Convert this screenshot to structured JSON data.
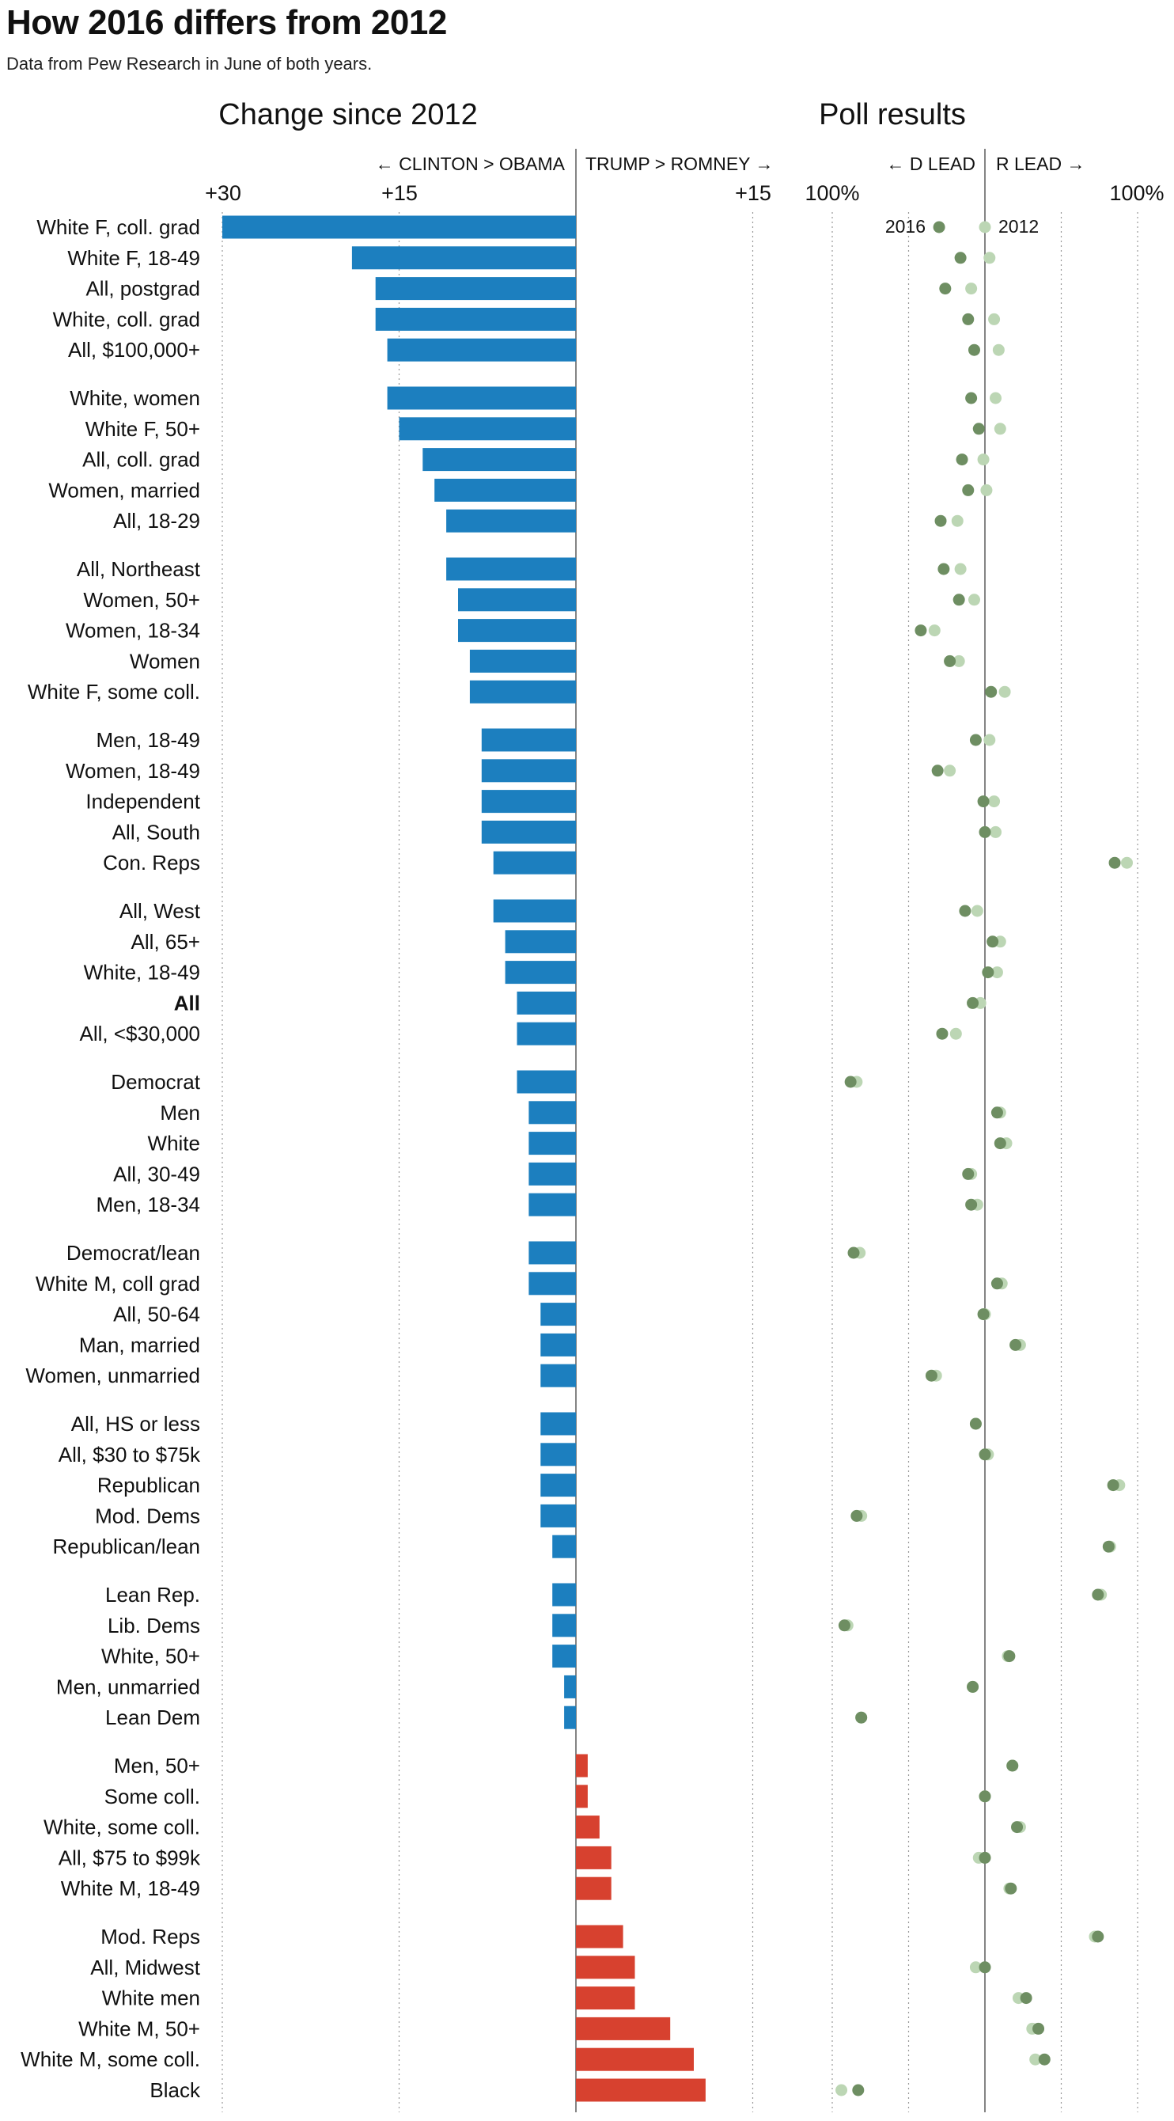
{
  "title": "How 2016 differs from 2012",
  "subtitle": "Data from Pew Research in June of both years.",
  "colors": {
    "clinton_gain": "#1c7fbf",
    "trump_gain": "#d7412f",
    "dot_2016": "#6e8e62",
    "dot_2012": "#bcd6b4",
    "axis": "#666666",
    "grid": "#999999"
  },
  "chart_data": [
    {
      "type": "bar",
      "title": "Change since 2012",
      "left_direction_label": "← CLINTON > OBAMA",
      "right_direction_label": "TRUMP > ROMNEY →",
      "xlim": [
        -30,
        15
      ],
      "x_ticks": [
        {
          "value": -30,
          "label": "+30"
        },
        {
          "value": -15,
          "label": "+15"
        },
        {
          "value": 15,
          "label": "+15"
        }
      ],
      "categories": [
        [
          "White F, coll. grad",
          "White F, 18-49",
          "All, postgrad",
          "White, coll. grad",
          "All, $100,000+"
        ],
        [
          "White, women",
          "White F, 50+",
          "All, coll. grad",
          "Women, married",
          "All, 18-29"
        ],
        [
          "All, Northeast",
          "Women, 50+",
          "Women, 18-34",
          "Women",
          "White F, some coll."
        ],
        [
          "Men, 18-49",
          "Women, 18-49",
          "Independent",
          "All, South",
          "Con. Reps"
        ],
        [
          "All, West",
          "All, 65+",
          "White, 18-49",
          "All",
          "All, <$30,000"
        ],
        [
          "Democrat",
          "Men",
          "White",
          "All, 30-49",
          "Men, 18-34"
        ],
        [
          "Democrat/lean",
          "White M, coll grad",
          "All, 50-64",
          "Man, married",
          "Women, unmarried"
        ],
        [
          "All, HS or less",
          "All, $30 to $75k",
          "Republican",
          "Mod. Dems",
          "Republican/lean"
        ],
        [
          "Lean Rep.",
          "Lib. Dems",
          "White, 50+",
          "Men, unmarried",
          "Lean Dem"
        ],
        [
          "Men, 50+",
          "Some coll.",
          "White, some coll.",
          "All, $75 to $99k",
          "White M, 18-49"
        ],
        [
          "Mod. Reps",
          "All, Midwest",
          "White men",
          "White M, 50+",
          "White M, some coll.",
          "Black"
        ]
      ],
      "bold_category": "All",
      "values": [
        [
          -30,
          -19,
          -17,
          -17,
          -16
        ],
        [
          -16,
          -15,
          -13,
          -12,
          -11
        ],
        [
          -11,
          -10,
          -10,
          -9,
          -9
        ],
        [
          -8,
          -8,
          -8,
          -8,
          -7
        ],
        [
          -7,
          -6,
          -6,
          -5,
          -5
        ],
        [
          -5,
          -4,
          -4,
          -4,
          -4
        ],
        [
          -4,
          -4,
          -3,
          -3,
          -3
        ],
        [
          -3,
          -3,
          -3,
          -3,
          -2
        ],
        [
          -2,
          -2,
          -2,
          -1,
          -1
        ],
        [
          1,
          1,
          2,
          3,
          3
        ],
        [
          4,
          5,
          5,
          8,
          10,
          11
        ]
      ]
    },
    {
      "type": "scatter",
      "title": "Poll results",
      "left_direction_label": "← D LEAD",
      "right_direction_label": "R LEAD →",
      "xlim": [
        -100,
        100
      ],
      "x_ticks": [
        {
          "value": -100,
          "label": "100%"
        },
        {
          "value": 100,
          "label": "100%"
        }
      ],
      "legend": {
        "2016": "2016",
        "2012": "2012"
      },
      "series": [
        {
          "name": "2016",
          "values": [
            [
              -30,
              -16,
              -26,
              -11,
              -7
            ],
            [
              -9,
              -4,
              -15,
              -11,
              -29
            ],
            [
              -27,
              -17,
              -42,
              -23,
              4
            ],
            [
              -6,
              -31,
              -1,
              0,
              85
            ],
            [
              -13,
              5,
              2,
              -8,
              -28
            ],
            [
              -88,
              8,
              10,
              -11,
              -9
            ],
            [
              -86,
              8,
              -1,
              20,
              -35
            ],
            [
              -6,
              0,
              84,
              -84,
              81
            ],
            [
              74,
              -92,
              16,
              -8,
              -81
            ],
            [
              18,
              0,
              21,
              0,
              17
            ],
            [
              74,
              0,
              27,
              35,
              39,
              -83
            ]
          ]
        },
        {
          "name": "2012",
          "values": [
            [
              0,
              3,
              -9,
              6,
              9
            ],
            [
              7,
              10,
              -1,
              1,
              -18
            ],
            [
              -16,
              -7,
              -33,
              -17,
              13
            ],
            [
              3,
              -23,
              6,
              7,
              93
            ],
            [
              -5,
              10,
              8,
              -3,
              -19
            ],
            [
              -84,
              10,
              14,
              -9,
              -5
            ],
            [
              -82,
              11,
              0,
              23,
              -32
            ],
            [
              -6,
              2,
              88,
              -81,
              82
            ],
            [
              76,
              -90,
              15,
              -8,
              -81
            ],
            [
              18,
              0,
              23,
              -4,
              16
            ],
            [
              72,
              -6,
              22,
              31,
              33,
              -94
            ]
          ]
        }
      ]
    }
  ]
}
